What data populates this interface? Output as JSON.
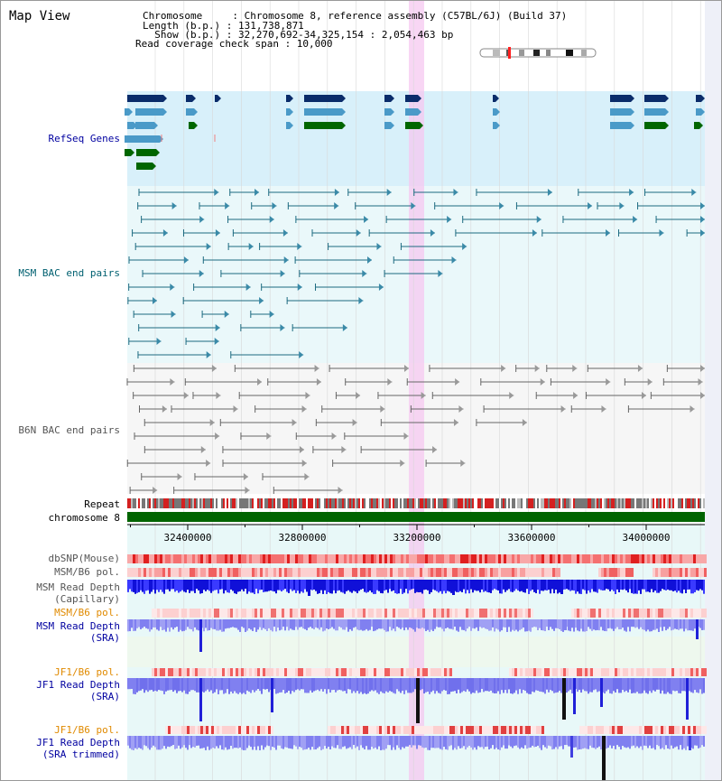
{
  "title": "Map View",
  "header": {
    "chromosome_line": "Chromosome     : Chromosome 8, reference assembly (C57BL/6J) (Build 37)",
    "length_line": "Length (b.p.) : 131,738,871",
    "show_line": "  Show (b.p.) : 32,270,692-34,325,154 : 2,054,463 bp",
    "coverage_line": "Read coverage check span : 10,000"
  },
  "tracks": {
    "refseq": "RefSeq Genes",
    "msm_bac": "MSM BAC end pairs",
    "b6n_bac": "B6N BAC end pairs",
    "repeat": "Repeat",
    "chromosome": "chromosome 8",
    "dbsnp": "dbSNP(Mouse)",
    "msm_b6_pol_1": "MSM/B6 pol.",
    "msm_depth_cap_1": "MSM Read Depth",
    "msm_depth_cap_2": "(Capillary)",
    "msm_b6_pol_2": "MSM/B6 pol.",
    "msm_depth_sra_1": "MSM Read Depth",
    "msm_depth_sra_2": "(SRA)",
    "jf1_b6_pol_1": "JF1/B6 pol.",
    "jf1_depth_sra_1": "JF1 Read Depth",
    "jf1_depth_sra_2": "(SRA)",
    "jf1_b6_pol_2": "JF1/B6 pol.",
    "jf1_depth_trim_1": "JF1 Read Depth",
    "jf1_depth_trim_2": "(SRA trimmed)"
  },
  "axis_ticks": [
    "32400000",
    "32800000",
    "33200000",
    "33600000",
    "34000000"
  ],
  "colors": {
    "refseq_bg": "#d8f0fa",
    "bac_bg": "#eaf8fa",
    "b6n_bg": "#f6f6f6",
    "gene_dark": "#0a2c6a",
    "gene_mid": "#4a9ac8",
    "gene_green": "#006600",
    "msm_line": "#1c6a80",
    "b6n_line": "#666666",
    "chromosome": "#006400",
    "highlight": "#f5c8f0",
    "depth_blue": "#1010e0",
    "depth_light": "#8080f0"
  }
}
